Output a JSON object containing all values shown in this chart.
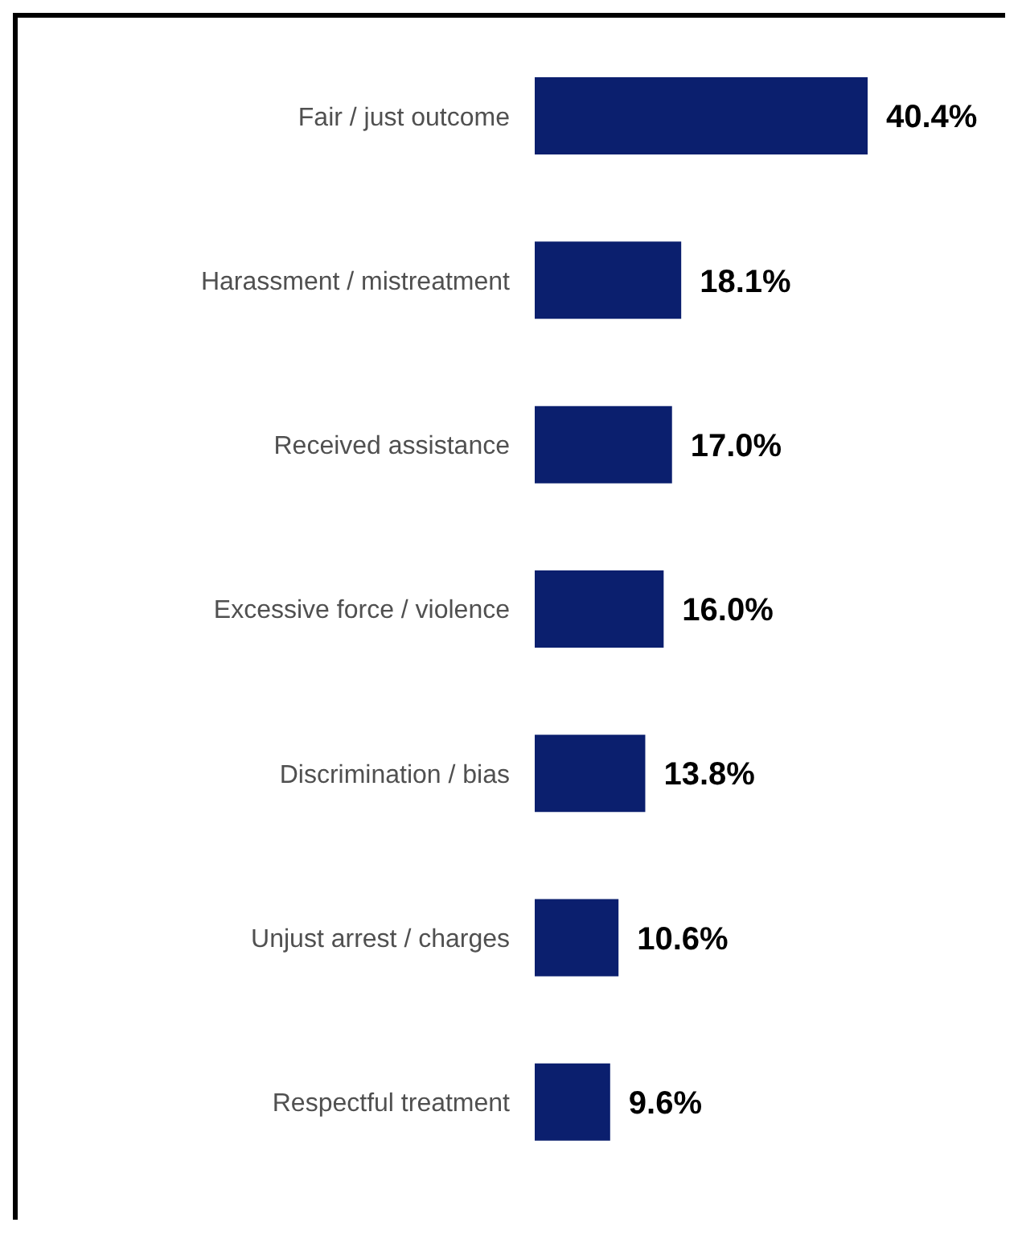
{
  "chart_data": {
    "type": "bar",
    "orientation": "horizontal",
    "categories": [
      "Fair / just outcome",
      "Harassment / mistreatment",
      "Received assistance",
      "Excessive force / violence",
      "Discrimination / bias",
      "Unjust arrest / charges",
      "Respectful treatment"
    ],
    "values": [
      40.4,
      18.1,
      17.0,
      16.0,
      13.8,
      10.6,
      9.6
    ],
    "value_labels": [
      "40.4%",
      "18.1%",
      "17.0%",
      "16.0%",
      "13.8%",
      "10.6%",
      "9.6%"
    ],
    "color": "#0b1f6e"
  }
}
